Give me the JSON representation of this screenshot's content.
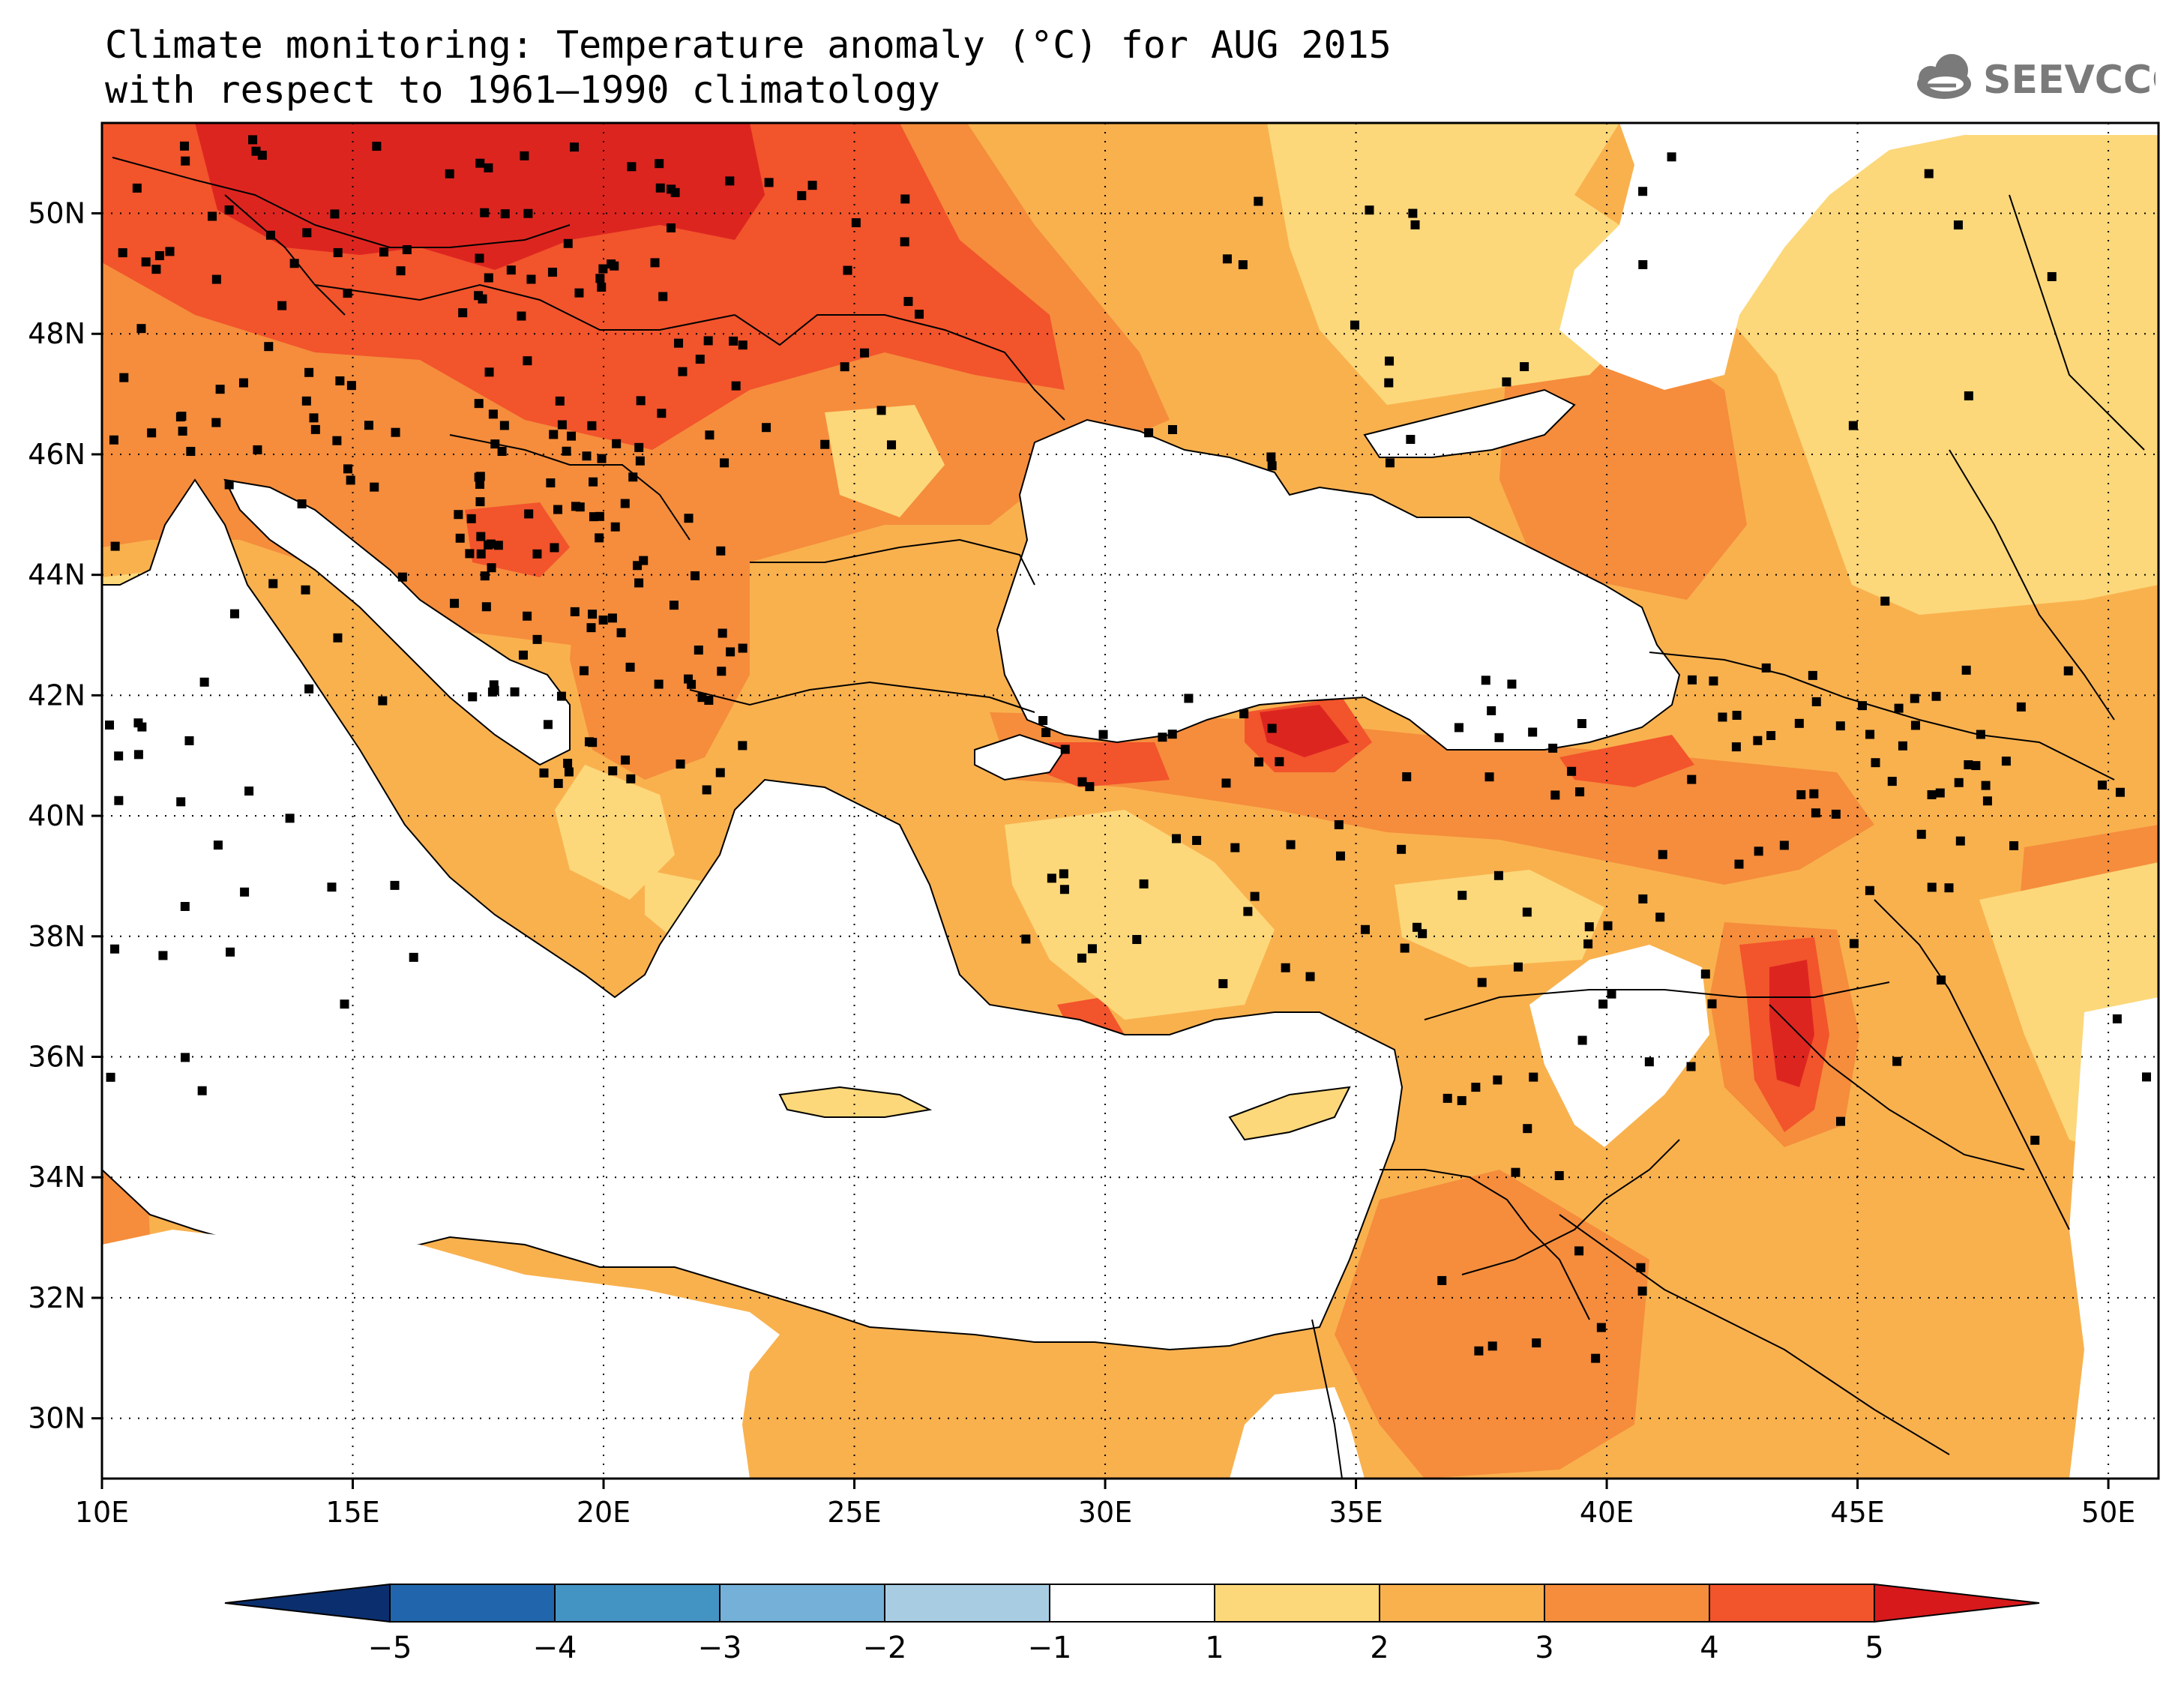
{
  "title": {
    "line1": "Climate monitoring: Temperature anomaly (°C) for AUG 2015",
    "line2": "with respect to 1961–1990 climatology"
  },
  "logo": {
    "text": "SEEVCCC",
    "icon": "cloud-icon"
  },
  "map": {
    "lon_range": [
      10,
      51
    ],
    "lat_range": [
      29,
      51.5
    ],
    "lon_ticks": [
      {
        "value": 10,
        "label": "10E"
      },
      {
        "value": 15,
        "label": "15E"
      },
      {
        "value": 20,
        "label": "20E"
      },
      {
        "value": 25,
        "label": "25E"
      },
      {
        "value": 30,
        "label": "30E"
      },
      {
        "value": 35,
        "label": "35E"
      },
      {
        "value": 40,
        "label": "40E"
      },
      {
        "value": 45,
        "label": "45E"
      },
      {
        "value": 50,
        "label": "50E"
      }
    ],
    "lat_ticks": [
      {
        "value": 30,
        "label": "30N"
      },
      {
        "value": 32,
        "label": "32N"
      },
      {
        "value": 34,
        "label": "34N"
      },
      {
        "value": 36,
        "label": "36N"
      },
      {
        "value": 38,
        "label": "38N"
      },
      {
        "value": 40,
        "label": "40N"
      },
      {
        "value": 42,
        "label": "42N"
      },
      {
        "value": 44,
        "label": "44N"
      },
      {
        "value": 46,
        "label": "46N"
      },
      {
        "value": 48,
        "label": "48N"
      },
      {
        "value": 50,
        "label": "50N"
      }
    ],
    "grid": "dotted"
  },
  "colorbar": {
    "labels": [
      "−5",
      "−4",
      "−3",
      "−2",
      "−1",
      "1",
      "2",
      "3",
      "4",
      "5"
    ],
    "colors": [
      "#2166ac",
      "#4393c3",
      "#74b0d8",
      "#a8cde3",
      "#ffffff",
      "#fcd87a",
      "#f9b14e",
      "#f58d3c",
      "#f2542c"
    ],
    "under_color": "#0b2f6e",
    "over_color": "#d7191c"
  },
  "colors": {
    "c1_2": "#fcd87a",
    "c2_3": "#f9b14e",
    "c3_4": "#f58d3c",
    "c4_5": "#f2542c",
    "c5": "#dd2520"
  }
}
